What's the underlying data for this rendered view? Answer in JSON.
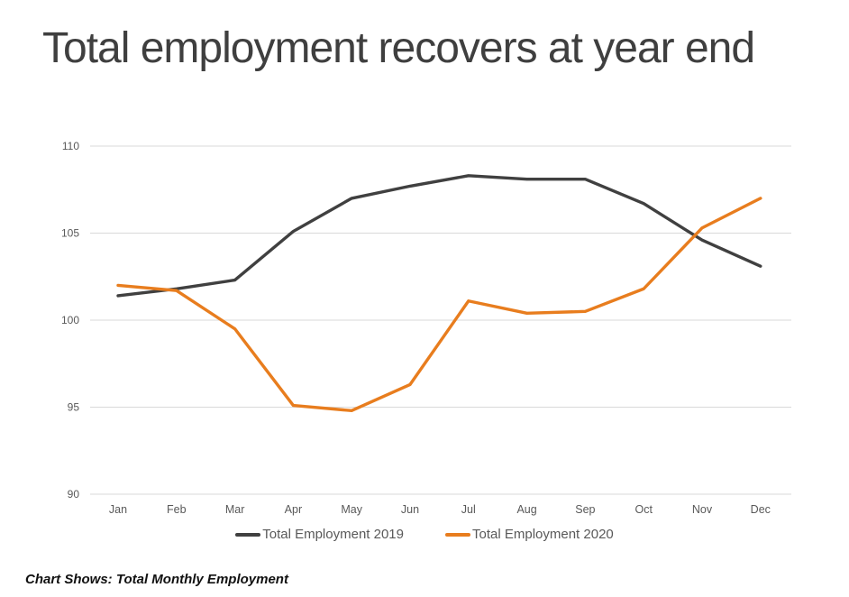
{
  "header": {
    "title": "Total employment recovers at year end"
  },
  "caption": "Chart Shows: Total Monthly Employment",
  "colors": {
    "title_text": "#3f3f3f",
    "axis_text": "#595959",
    "gridline": "#d9d9d9",
    "series_2019": "#404040",
    "series_2020": "#e87d1e"
  },
  "chart_data": {
    "type": "line",
    "title": "Total employment recovers at year end",
    "xlabel": "",
    "ylabel": "",
    "categories": [
      "Jan",
      "Feb",
      "Mar",
      "Apr",
      "May",
      "Jun",
      "Jul",
      "Aug",
      "Sep",
      "Oct",
      "Nov",
      "Dec"
    ],
    "series": [
      {
        "name": "Total Employment 2019",
        "color": "#404040",
        "values": [
          101.4,
          101.8,
          102.3,
          105.1,
          107.0,
          107.7,
          108.3,
          108.1,
          108.1,
          106.7,
          104.6,
          103.1
        ]
      },
      {
        "name": "Total Employment 2020",
        "color": "#e87d1e",
        "values": [
          102.0,
          101.7,
          99.5,
          95.1,
          94.8,
          96.3,
          101.1,
          100.4,
          100.5,
          101.8,
          105.3,
          107.0
        ]
      }
    ],
    "ylim": [
      90,
      110
    ],
    "yticks": [
      90,
      95,
      100,
      105,
      110
    ],
    "grid": true,
    "legend_position": "bottom"
  }
}
